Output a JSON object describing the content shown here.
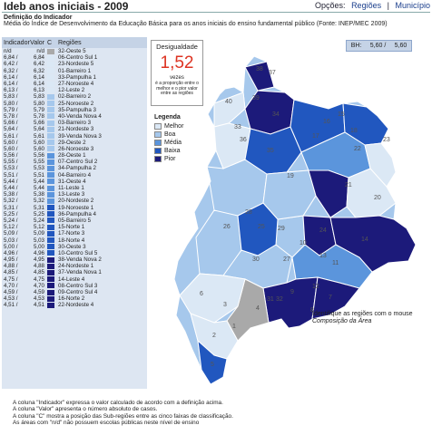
{
  "header": {
    "title": "Ideb anos iniciais - 2009",
    "options_label": "Opções:",
    "options": [
      "Regiões",
      "Município"
    ]
  },
  "definition": {
    "heading": "Definição do Indicador",
    "text": "Média do Índice de Desenvolvimento da Educação Básica para os anos iniciais do ensino fundamental público (Fonte: INEP/MEC 2009)"
  },
  "table": {
    "headers": {
      "indicator": "Indicador",
      "value": "Valor",
      "class": "C",
      "regions": "Regiões"
    },
    "rows": [
      {
        "ind": "n/d",
        "val": "n/d",
        "cls": "nd",
        "reg": "32-Oeste 5"
      },
      {
        "ind": "6,84 /",
        "val": "6,84",
        "cls": "melhor",
        "reg": "06-Centro Sul 1"
      },
      {
        "ind": "6,42 /",
        "val": "6,42",
        "cls": "melhor",
        "reg": "23-Nordeste 5"
      },
      {
        "ind": "6,32 /",
        "val": "6,32",
        "cls": "melhor",
        "reg": "01-Barreiro 1"
      },
      {
        "ind": "6,14 /",
        "val": "6,14",
        "cls": "melhor",
        "reg": "33-Pampulha 1"
      },
      {
        "ind": "6,14 /",
        "val": "6,14",
        "cls": "melhor",
        "reg": "27-Noroeste 4"
      },
      {
        "ind": "6,13 /",
        "val": "6,13",
        "cls": "melhor",
        "reg": "12-Leste 2"
      },
      {
        "ind": "5,83 /",
        "val": "5,83",
        "cls": "boa",
        "reg": "02-Barreiro 2"
      },
      {
        "ind": "5,80 /",
        "val": "5,80",
        "cls": "boa",
        "reg": "25-Noroeste 2"
      },
      {
        "ind": "5,79 /",
        "val": "5,79",
        "cls": "boa",
        "reg": "35-Pampulha 3"
      },
      {
        "ind": "5,78 /",
        "val": "5,78",
        "cls": "boa",
        "reg": "40-Venda Nova 4"
      },
      {
        "ind": "5,66 /",
        "val": "5,66",
        "cls": "boa",
        "reg": "03-Barreiro 3"
      },
      {
        "ind": "5,64 /",
        "val": "5,64",
        "cls": "boa",
        "reg": "21-Nordeste 3"
      },
      {
        "ind": "5,61 /",
        "val": "5,61",
        "cls": "boa",
        "reg": "39-Venda Nova 3"
      },
      {
        "ind": "5,60 /",
        "val": "5,60",
        "cls": "boa",
        "reg": "29-Oeste 2"
      },
      {
        "ind": "5,60 /",
        "val": "5,60",
        "cls": "boa",
        "reg": "26-Noroeste 3"
      },
      {
        "ind": "5,56 /",
        "val": "5,56",
        "cls": "media",
        "reg": "28-Oeste 1"
      },
      {
        "ind": "5,55 /",
        "val": "5,55",
        "cls": "media",
        "reg": "07-Centro Sul 2"
      },
      {
        "ind": "5,53 /",
        "val": "5,53",
        "cls": "media",
        "reg": "34-Pampulha 2"
      },
      {
        "ind": "5,51 /",
        "val": "5,51",
        "cls": "media",
        "reg": "04-Barreiro 4"
      },
      {
        "ind": "5,44 /",
        "val": "5,44",
        "cls": "media",
        "reg": "31-Oeste 4"
      },
      {
        "ind": "5,44 /",
        "val": "5,44",
        "cls": "media",
        "reg": "11-Leste 1"
      },
      {
        "ind": "5,38 /",
        "val": "5,38",
        "cls": "media",
        "reg": "13-Leste 3"
      },
      {
        "ind": "5,32 /",
        "val": "5,32",
        "cls": "media",
        "reg": "20-Nordeste 2"
      },
      {
        "ind": "5,31 /",
        "val": "5,31",
        "cls": "baixa",
        "reg": "19-Noroeste 1"
      },
      {
        "ind": "5,25 /",
        "val": "5,25",
        "cls": "baixa",
        "reg": "36-Pampulha 4"
      },
      {
        "ind": "5,24 /",
        "val": "5,24",
        "cls": "baixa",
        "reg": "05-Barreiro 5"
      },
      {
        "ind": "5,12 /",
        "val": "5,12",
        "cls": "baixa",
        "reg": "15-Norte 1"
      },
      {
        "ind": "5,09 /",
        "val": "5,09",
        "cls": "baixa",
        "reg": "17-Norte 3"
      },
      {
        "ind": "5,03 /",
        "val": "5,03",
        "cls": "baixa",
        "reg": "18-Norte 4"
      },
      {
        "ind": "5,00 /",
        "val": "5,00",
        "cls": "baixa",
        "reg": "30-Oeste 3"
      },
      {
        "ind": "4,96 /",
        "val": "4,96",
        "cls": "baixa",
        "reg": "10-Centro Sul 5"
      },
      {
        "ind": "4,95 /",
        "val": "4,95",
        "cls": "pior",
        "reg": "38-Venda Nova 2"
      },
      {
        "ind": "4,88 /",
        "val": "4,88",
        "cls": "pior",
        "reg": "24-Nordeste 1"
      },
      {
        "ind": "4,85 /",
        "val": "4,85",
        "cls": "pior",
        "reg": "37-Venda Nova 1"
      },
      {
        "ind": "4,75 /",
        "val": "4,75",
        "cls": "pior",
        "reg": "14-Leste 4"
      },
      {
        "ind": "4,70 /",
        "val": "4,70",
        "cls": "pior",
        "reg": "08-Centro Sul 3"
      },
      {
        "ind": "4,59 /",
        "val": "4,59",
        "cls": "pior",
        "reg": "09-Centro Sul 4"
      },
      {
        "ind": "4,53 /",
        "val": "4,53",
        "cls": "pior",
        "reg": "16-Norte 2"
      },
      {
        "ind": "4,51 /",
        "val": "4,51",
        "cls": "pior",
        "reg": "22-Nordeste 4"
      }
    ]
  },
  "inequality": {
    "heading": "Desigualdade",
    "value": "1,52",
    "unit": "vezes",
    "note": "é a proporção entre o melhor e o pior valor entre as regiões"
  },
  "legend": {
    "title": "Legenda",
    "items": [
      {
        "key": "melhor",
        "label": "Melhor"
      },
      {
        "key": "boa",
        "label": "Boa"
      },
      {
        "key": "media",
        "label": "Média"
      },
      {
        "key": "baixa",
        "label": "Baixa"
      },
      {
        "key": "pior",
        "label": "Pior"
      }
    ]
  },
  "colors": {
    "nd": "#a9a9a9",
    "melhor": "#dbe8f5",
    "boa": "#a6c8ec",
    "media": "#5b95dc",
    "baixa": "#2157bf",
    "pior": "#1c1a7a"
  },
  "bh": {
    "label": "BH:",
    "value1": "5,60 /",
    "value2": "5,60"
  },
  "hint": {
    "line1": "Identifique as regiões com o mouse",
    "line2": "Composição da Área"
  },
  "map_labels": [
    "38",
    "37",
    "40",
    "39",
    "33",
    "34",
    "36",
    "35",
    "17",
    "18",
    "16",
    "15",
    "19",
    "22",
    "23",
    "21",
    "20",
    "25",
    "26",
    "28",
    "29",
    "27",
    "24",
    "14",
    "11",
    "13",
    "12",
    "30",
    "31",
    "10",
    "9",
    "6",
    "8",
    "7",
    "32",
    "3",
    "4",
    "1",
    "2",
    "5"
  ],
  "footnotes": [
    "A coluna \"Indicador\" expressa o valor calculado de acordo com a definição acima.",
    "A coluna \"Valor\" apresenta o número absoluto de casos.",
    "A coluna \"C\" mostra a posição das Sub-regiões entre as cinco faixas de classificação.",
    "As áreas com \"n/d\" não possuem escolas públicas neste nível de ensino"
  ]
}
